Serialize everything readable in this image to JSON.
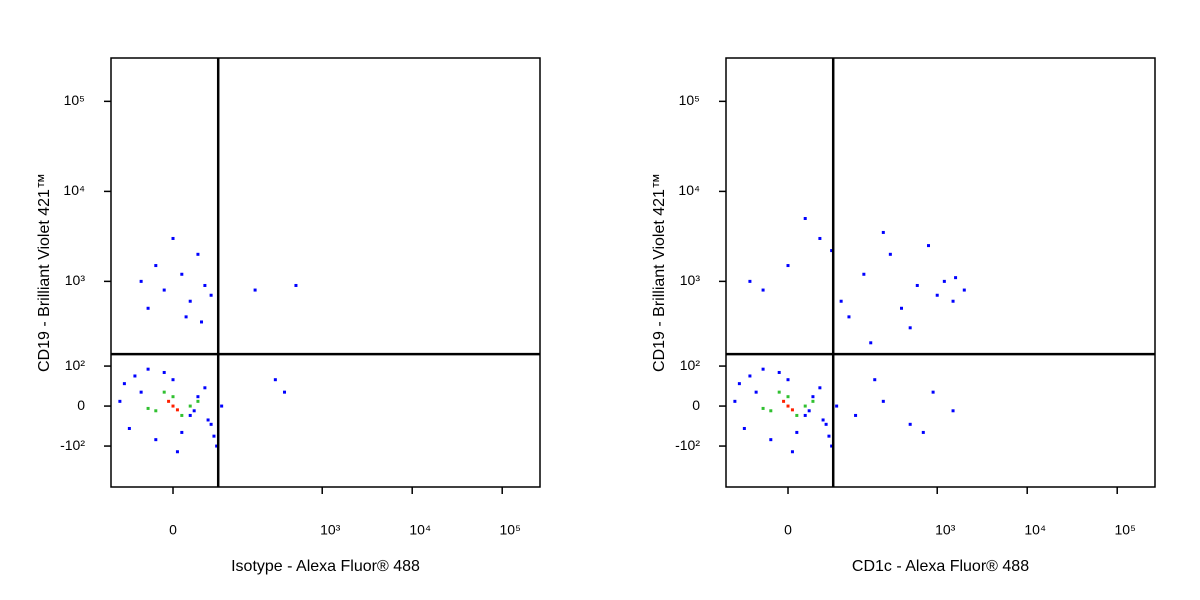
{
  "chart_data": [
    {
      "type": "scatter",
      "xscale": "biexponential",
      "yscale": "biexponential",
      "xlabel": "Isotype - Alexa Fluor® 488",
      "ylabel": "CD19 - Brilliant Violet 421™",
      "xlim": [
        -103,
        263000
      ],
      "ylim": [
        -322,
        303000
      ],
      "xticks": [
        0,
        {
          "value": 1000,
          "label": "10³"
        },
        {
          "value": 10000,
          "label": "10⁴"
        },
        {
          "value": 100000,
          "label": "10⁵"
        }
      ],
      "yticks": [
        {
          "value": -100,
          "label": "-10²"
        },
        0,
        {
          "value": 100,
          "label": "10²"
        },
        {
          "value": 1000,
          "label": "10³"
        },
        {
          "value": 10000,
          "label": "10⁴"
        },
        {
          "value": 100000,
          "label": "10⁵"
        }
      ],
      "gates": {
        "x": 63,
        "y": 145
      },
      "series": [
        {
          "color": "#0000ff",
          "x": [
            -60,
            -40,
            -20,
            0,
            20,
            40,
            60,
            -80,
            -50,
            10,
            30,
            50,
            -30,
            5,
            70,
            -70,
            45,
            -10,
            25,
            55,
            -30,
            -10,
            10,
            30,
            50,
            -20,
            0,
            20,
            40,
            -40,
            15,
            35,
            177,
            510,
            300,
            380
          ],
          "y": [
            -50,
            30,
            -80,
            60,
            -20,
            40,
            -100,
            10,
            70,
            -60,
            20,
            -40,
            90,
            -120,
            0,
            50,
            -30,
            80,
            -10,
            -70,
            500,
            800,
            1200,
            2000,
            700,
            1500,
            3000,
            600,
            900,
            1000,
            400,
            350,
            800,
            900,
            60,
            30
          ]
        },
        {
          "color": "#30c030",
          "x": [
            -20,
            0,
            20,
            -10,
            10,
            30,
            -30
          ],
          "y": [
            -10,
            20,
            0,
            30,
            -20,
            10,
            -5
          ]
        },
        {
          "color": "#ff2000",
          "x": [
            0,
            -5,
            5
          ],
          "y": [
            0,
            10,
            -8
          ]
        }
      ]
    },
    {
      "type": "scatter",
      "xscale": "biexponential",
      "yscale": "biexponential",
      "xlabel": "CD1c - Alexa Fluor® 488",
      "ylabel": "CD19 - Brilliant Violet 421™",
      "xlim": [
        -103,
        263000
      ],
      "ylim": [
        -322,
        303000
      ],
      "xticks": [
        0,
        {
          "value": 1000,
          "label": "10³"
        },
        {
          "value": 10000,
          "label": "10⁴"
        },
        {
          "value": 100000,
          "label": "10⁵"
        }
      ],
      "yticks": [
        {
          "value": -100,
          "label": "-10²"
        },
        0,
        {
          "value": 100,
          "label": "10²"
        },
        {
          "value": 1000,
          "label": "10³"
        },
        {
          "value": 10000,
          "label": "10⁴"
        },
        {
          "value": 100000,
          "label": "10⁵"
        }
      ],
      "gates": {
        "x": 63,
        "y": 145
      },
      "series": [
        {
          "color": "#0000ff",
          "x": [
            -60,
            -40,
            -20,
            0,
            20,
            40,
            60,
            -80,
            -50,
            10,
            30,
            50,
            -30,
            5,
            70,
            -70,
            45,
            -10,
            25,
            55,
            120,
            250,
            500,
            900,
            1500,
            200,
            700,
            -30,
            0,
            40,
            80,
            150,
            300,
            600,
            1000,
            1600,
            2000,
            100,
            400,
            800,
            1200,
            -50,
            20,
            250,
            500,
            1500,
            60,
            180
          ],
          "y": [
            -50,
            30,
            -80,
            60,
            -20,
            40,
            -100,
            10,
            70,
            -60,
            20,
            -40,
            90,
            -120,
            0,
            50,
            -30,
            80,
            -10,
            -70,
            -20,
            10,
            -40,
            30,
            -10,
            60,
            -60,
            800,
            1500,
            3000,
            600,
            1200,
            2000,
            900,
            700,
            1100,
            800,
            400,
            500,
            2500,
            1000,
            1000,
            5000,
            3500,
            300,
            600,
            2200,
            200
          ]
        },
        {
          "color": "#30c030",
          "x": [
            -20,
            0,
            20,
            -10,
            10,
            30,
            -30
          ],
          "y": [
            -10,
            20,
            0,
            30,
            -20,
            10,
            -5
          ]
        },
        {
          "color": "#ff2000",
          "x": [
            0,
            -5,
            5
          ],
          "y": [
            0,
            10,
            -8
          ]
        }
      ]
    }
  ]
}
